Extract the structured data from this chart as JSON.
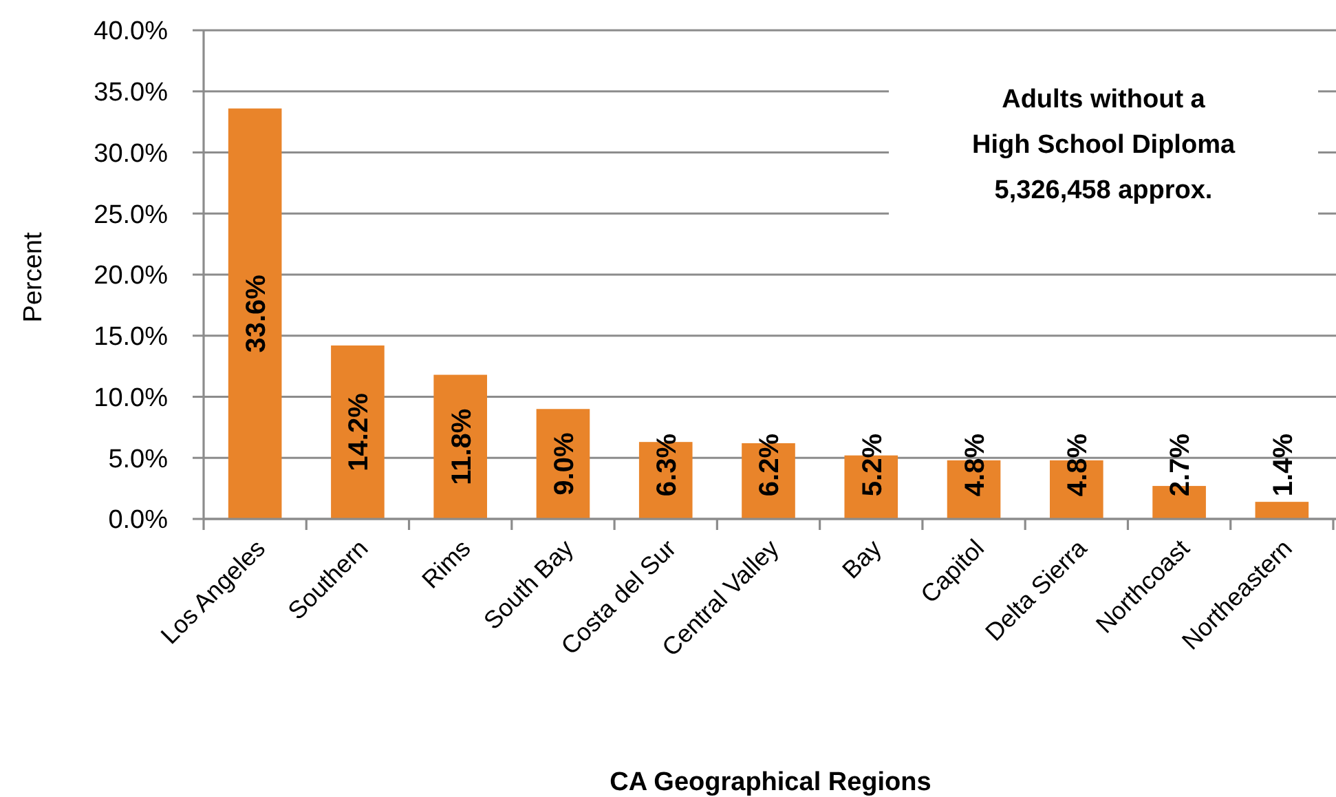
{
  "chart_data": {
    "type": "bar",
    "xlabel": "CA Geographical Regions",
    "ylabel": "Percent",
    "categories": [
      "Los Angeles",
      "Southern",
      "Rims",
      "South Bay",
      "Costa del Sur",
      "Central Valley",
      "Bay",
      "Capitol",
      "Delta Sierra",
      "Northcoast",
      "Northeastern"
    ],
    "values": [
      33.6,
      14.2,
      11.8,
      9.0,
      6.3,
      6.2,
      5.2,
      4.8,
      4.8,
      2.7,
      1.4
    ],
    "value_labels": [
      "33.6%",
      "14.2%",
      "11.8%",
      "9.0%",
      "6.3%",
      "6.2%",
      "5.2%",
      "4.8%",
      "4.8%",
      "2.7%",
      "1.4%"
    ],
    "color": "#e9842a",
    "ylim": [
      0,
      40
    ],
    "yticks": [
      {
        "value": 0,
        "label": "0.0%"
      },
      {
        "value": 5,
        "label": "5.0%"
      },
      {
        "value": 10,
        "label": "10.0%"
      },
      {
        "value": 15,
        "label": "15.0%"
      },
      {
        "value": 20,
        "label": "20.0%"
      },
      {
        "value": 25,
        "label": "25.0%"
      },
      {
        "value": 30,
        "label": "30.0%"
      },
      {
        "value": 35,
        "label": "35.0%"
      },
      {
        "value": 40,
        "label": "40.0%"
      }
    ],
    "grid": "y",
    "annotations": [
      "Adults without a\nHigh School Diploma\n5,326,458 approx."
    ]
  }
}
